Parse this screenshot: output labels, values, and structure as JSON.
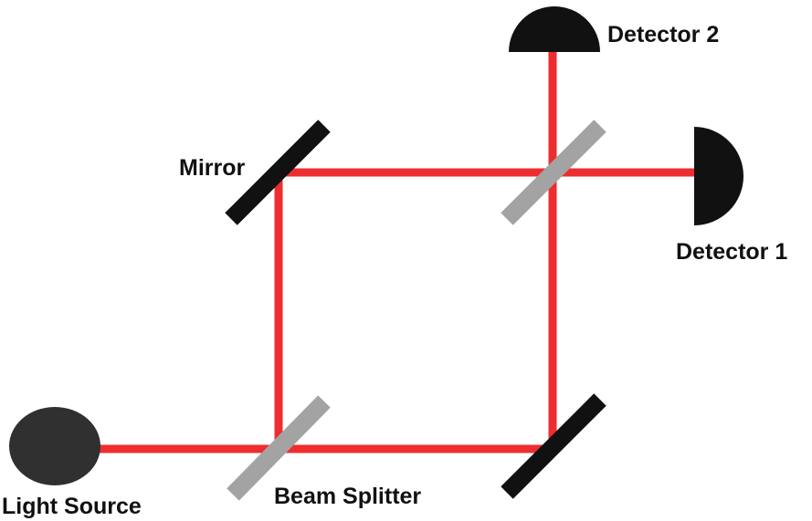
{
  "colors": {
    "beam": "#ee2d2f",
    "mirror": "#111111",
    "splitter": "#a3a3a3",
    "detector": "#111111",
    "source": "#303030",
    "label": "#111111"
  },
  "labels": {
    "light_source": "Light Source",
    "beam_splitter": "Beam Splitter",
    "mirror": "Mirror",
    "detector_1": "Detector 1",
    "detector_2": "Detector 2"
  }
}
